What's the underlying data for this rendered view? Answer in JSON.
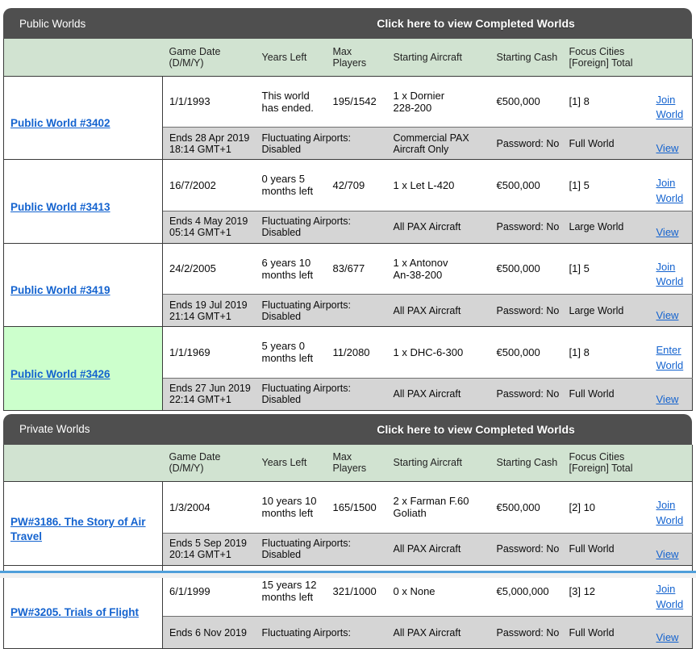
{
  "colors": {
    "section_bar_bg": "#4f4f4f",
    "table_header_bg": "#d1e3d1",
    "subrow_bg": "#d5d5d5",
    "highlight_row_bg": "#ccffcc",
    "link_blue": "#1463cf",
    "bottom_edge_blue": "#4f9fda"
  },
  "banner": "Click here to view Completed Worlds",
  "columns": {
    "name": "",
    "date": "Game Date\n(D/M/Y)",
    "years": "Years Left",
    "players": "Max\nPlayers",
    "aircraft": "Starting Aircraft",
    "cash": "Starting Cash",
    "focus": "Focus Cities\n[Foreign] Total",
    "action": ""
  },
  "sections": [
    {
      "title": "Public Worlds",
      "rows": [
        {
          "name": "Public World #3402",
          "date": "1/1/1993",
          "years": "This world\nhas ended.",
          "players": "195/1542",
          "aircraft": "1 x Dornier\n228-200",
          "cash": "€500,000",
          "focus": "[1] 8",
          "join": "Join World",
          "ends": "Ends 28 Apr 2019\n18:14 GMT+1",
          "airports": "Fluctuating Airports:\nDisabled",
          "aircraft_class": "Commercial PAX\nAircraft Only",
          "password": "Password: No",
          "size": "Full World",
          "view": "View",
          "highlight": false
        },
        {
          "name": "Public World #3413",
          "date": "16/7/2002",
          "years": "0 years 5\nmonths left",
          "players": "42/709",
          "aircraft": "1 x Let L-420",
          "cash": "€500,000",
          "focus": "[1] 5",
          "join": "Join World",
          "ends": "Ends 4 May 2019\n05:14 GMT+1",
          "airports": "Fluctuating Airports:\nDisabled",
          "aircraft_class": "All PAX Aircraft",
          "password": "Password: No",
          "size": "Large World",
          "view": "View",
          "highlight": false
        },
        {
          "name": "Public World #3419",
          "date": "24/2/2005",
          "years": "6 years 10\nmonths left",
          "players": "83/677",
          "aircraft": "1 x Antonov\nAn-38-200",
          "cash": "€500,000",
          "focus": "[1] 5",
          "join": "Join World",
          "ends": "Ends 19 Jul 2019\n21:14 GMT+1",
          "airports": "Fluctuating Airports:\nDisabled",
          "aircraft_class": "All PAX Aircraft",
          "password": "Password: No",
          "size": "Large World",
          "view": "View",
          "highlight": false
        },
        {
          "name": "Public World #3426",
          "date": "1/1/1969",
          "years": "5 years 0\nmonths left",
          "players": "11/2080",
          "aircraft": "1 x DHC-6-300",
          "cash": "€500,000",
          "focus": "[1] 8",
          "join": "Enter World",
          "ends": "Ends 27 Jun 2019\n22:14 GMT+1",
          "airports": "Fluctuating Airports:\nDisabled",
          "aircraft_class": "All PAX Aircraft",
          "password": "Password: No",
          "size": "Full World",
          "view": "View",
          "highlight": true
        }
      ]
    },
    {
      "title": "Private Worlds",
      "rows": [
        {
          "name": "PW#3186. The Story of Air Travel",
          "date": "1/3/2004",
          "years": "10 years 10\nmonths left",
          "players": "165/1500",
          "aircraft": "2 x Farman F.60\nGoliath",
          "cash": "€500,000",
          "focus": "[2] 10",
          "join": "Join World",
          "ends": "Ends 5 Sep 2019\n20:14 GMT+1",
          "airports": "Fluctuating Airports:\nDisabled",
          "aircraft_class": "All PAX Aircraft",
          "password": "Password: No",
          "size": "Full World",
          "view": "View",
          "highlight": false
        },
        {
          "name": "PW#3205. Trials of Flight",
          "date": "6/1/1999",
          "years": "15 years 12\nmonths left",
          "players": "321/1000",
          "aircraft": "0 x None",
          "cash": "€5,000,000",
          "focus": "[3] 12",
          "join": "Join World",
          "ends": "Ends 6 Nov 2019",
          "airports": "Fluctuating Airports:",
          "aircraft_class": "All PAX Aircraft",
          "password": "Password: No",
          "size": "Full World",
          "view": "View",
          "highlight": false
        }
      ]
    }
  ]
}
